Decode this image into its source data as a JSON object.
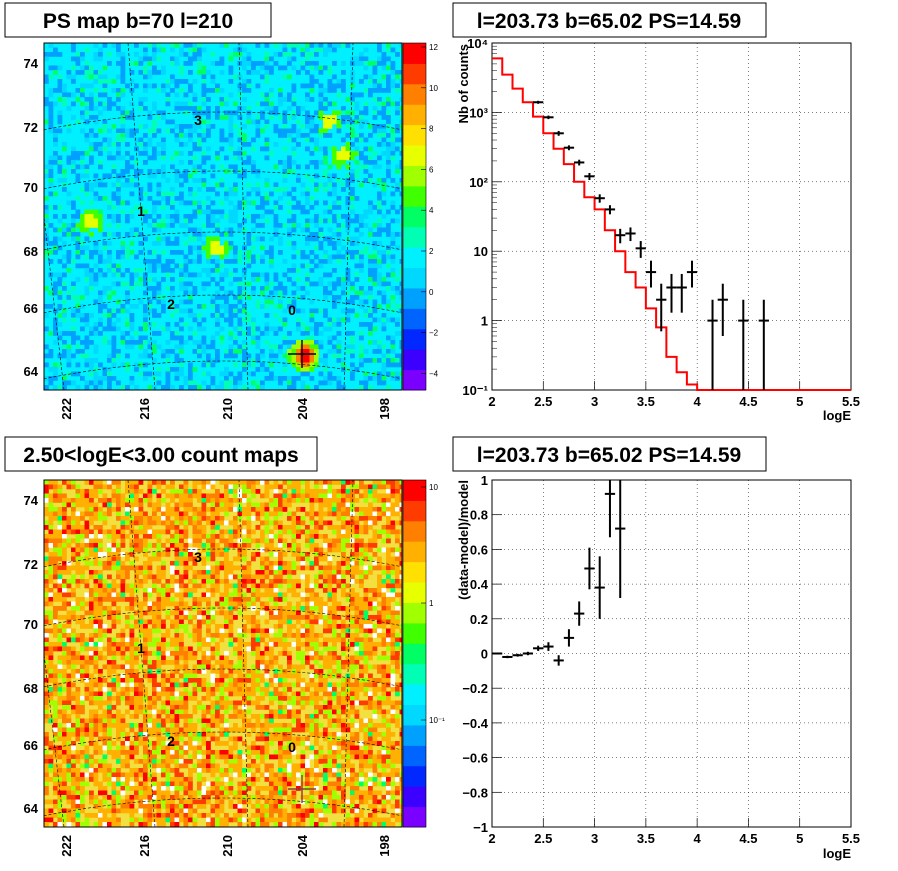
{
  "chart_data": [
    {
      "type": "heatmap",
      "title": "PS map b=70 l=210",
      "x_ticks": [
        "222",
        "216",
        "210",
        "204",
        "198"
      ],
      "y_ticks": [
        "64",
        "66",
        "68",
        "70",
        "72",
        "74"
      ],
      "colorbar_ticks": [
        "12",
        "10",
        "8",
        "6",
        "4",
        "2",
        "0",
        "−2",
        "−4"
      ],
      "colorbar_range": [
        -5,
        12
      ],
      "source_labels": [
        "0",
        "1",
        "2",
        "3"
      ],
      "markers": [
        {
          "l": 204,
          "b": 64.5
        }
      ],
      "colors": {
        "background": "#00f0ff",
        "grid": "#000000"
      }
    },
    {
      "type": "line",
      "title": "l=203.73 b=65.02 PS=14.59",
      "xlabel": "logE",
      "ylabel": "Nb of counts",
      "xlim": [
        2,
        5.5
      ],
      "ylim": [
        0.1,
        10000
      ],
      "yscale": "log",
      "grid": true,
      "x_ticks": [
        "2",
        "2.5",
        "3",
        "3.5",
        "4",
        "4.5",
        "5",
        "5.5"
      ],
      "y_ticks": [
        "10⁻¹",
        "1",
        "10",
        "10²",
        "10³",
        "10⁴"
      ],
      "series": [
        {
          "kind": "histogram",
          "color": "#ff0000",
          "edges": [
            2.0,
            2.1,
            2.2,
            2.3,
            2.4,
            2.5,
            2.6,
            2.7,
            2.8,
            2.9,
            3.0,
            3.1,
            3.2,
            3.3,
            3.4,
            3.5,
            3.6,
            3.7,
            3.8,
            3.9,
            4.0,
            5.5
          ],
          "values": [
            6000,
            3500,
            2200,
            1400,
            870,
            500,
            300,
            180,
            100,
            60,
            40,
            20,
            10,
            5,
            3,
            1.5,
            0.8,
            0.3,
            0.18,
            0.12,
            0.1
          ]
        },
        {
          "kind": "errorbars",
          "color": "#000000",
          "points": [
            {
              "x": 2.45,
              "y": 1400,
              "lo": 1330,
              "hi": 1470
            },
            {
              "x": 2.55,
              "y": 850,
              "lo": 800,
              "hi": 900
            },
            {
              "x": 2.65,
              "y": 500,
              "lo": 460,
              "hi": 540
            },
            {
              "x": 2.75,
              "y": 310,
              "lo": 285,
              "hi": 335
            },
            {
              "x": 2.85,
              "y": 190,
              "lo": 172,
              "hi": 208
            },
            {
              "x": 2.95,
              "y": 120,
              "lo": 106,
              "hi": 134
            },
            {
              "x": 3.05,
              "y": 58,
              "lo": 50,
              "hi": 66
            },
            {
              "x": 3.15,
              "y": 40,
              "lo": 34,
              "hi": 46
            },
            {
              "x": 3.25,
              "y": 17,
              "lo": 13,
              "hi": 21
            },
            {
              "x": 3.35,
              "y": 18,
              "lo": 14,
              "hi": 22
            },
            {
              "x": 3.45,
              "y": 11,
              "lo": 8,
              "hi": 14
            },
            {
              "x": 3.55,
              "y": 5,
              "lo": 3,
              "hi": 7.3
            },
            {
              "x": 3.65,
              "y": 2,
              "lo": 0.7,
              "hi": 3.4
            },
            {
              "x": 3.75,
              "y": 3,
              "lo": 1.3,
              "hi": 4.7
            },
            {
              "x": 3.85,
              "y": 3,
              "lo": 1.3,
              "hi": 4.7
            },
            {
              "x": 3.95,
              "y": 5,
              "lo": 3,
              "hi": 7.3
            },
            {
              "x": 4.15,
              "y": 1,
              "lo": 0.1,
              "hi": 2
            },
            {
              "x": 4.25,
              "y": 2,
              "lo": 0.6,
              "hi": 3.4
            },
            {
              "x": 4.45,
              "y": 1,
              "lo": 0.1,
              "hi": 2
            },
            {
              "x": 4.65,
              "y": 1,
              "lo": 0.1,
              "hi": 2
            }
          ]
        }
      ]
    },
    {
      "type": "heatmap",
      "title": "2.50<logE<3.00 count maps",
      "x_ticks": [
        "222",
        "216",
        "210",
        "204",
        "198"
      ],
      "y_ticks": [
        "64",
        "66",
        "68",
        "70",
        "72",
        "74"
      ],
      "colorbar_ticks": [
        "10",
        "1",
        "10⁻¹"
      ],
      "colorbar_scale": "log",
      "source_labels": [
        "0",
        "1",
        "2",
        "3"
      ],
      "markers": [
        {
          "l": 204,
          "b": 64.5
        }
      ],
      "colors": {
        "background": "#f2e040",
        "grid": "#000000"
      }
    },
    {
      "type": "scatter",
      "title": "l=203.73 b=65.02 PS=14.59",
      "xlabel": "logE",
      "ylabel": "(data-model)/model",
      "xlim": [
        2,
        5.5
      ],
      "ylim": [
        -1,
        1
      ],
      "grid": true,
      "x_ticks": [
        "2",
        "2.5",
        "3",
        "3.5",
        "4",
        "4.5",
        "5",
        "5.5"
      ],
      "y_ticks": [
        "−1",
        "−0.8",
        "−0.6",
        "−0.4",
        "−0.2",
        "0",
        "0.2",
        "0.4",
        "0.6",
        "0.8",
        "1"
      ],
      "series": [
        {
          "kind": "errorbars",
          "color": "#000000",
          "points": [
            {
              "x": 2.05,
              "y": 0.0,
              "err": 0.005
            },
            {
              "x": 2.15,
              "y": -0.02,
              "err": 0.007
            },
            {
              "x": 2.25,
              "y": -0.01,
              "err": 0.008
            },
            {
              "x": 2.35,
              "y": 0.0,
              "err": 0.01
            },
            {
              "x": 2.45,
              "y": 0.03,
              "err": 0.015
            },
            {
              "x": 2.55,
              "y": 0.04,
              "err": 0.025
            },
            {
              "x": 2.65,
              "y": -0.04,
              "err": 0.03
            },
            {
              "x": 2.75,
              "y": 0.09,
              "err": 0.05
            },
            {
              "x": 2.85,
              "y": 0.23,
              "err": 0.07
            },
            {
              "x": 2.95,
              "y": 0.49,
              "err": 0.12
            },
            {
              "x": 3.05,
              "y": 0.38,
              "err": 0.18
            },
            {
              "x": 3.15,
              "y": 0.92,
              "err": 0.25
            },
            {
              "x": 3.25,
              "y": 0.72,
              "err": 0.4
            }
          ]
        }
      ]
    }
  ]
}
